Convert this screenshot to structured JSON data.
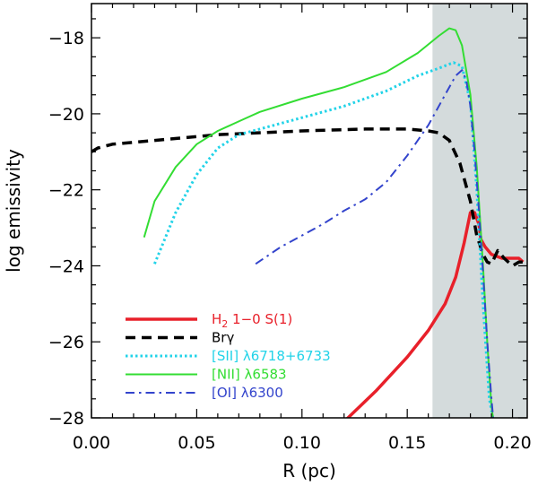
{
  "chart_data": {
    "type": "line",
    "xlabel": "R (pc)",
    "ylabel": "log emissivity",
    "xlim": [
      0.0,
      0.207
    ],
    "ylim": [
      -28,
      -17.1
    ],
    "xticks": [
      0.0,
      0.05,
      0.1,
      0.15,
      0.2
    ],
    "xtick_labels": [
      "0.00",
      "0.05",
      "0.10",
      "0.15",
      "0.20"
    ],
    "yticks": [
      -28,
      -26,
      -24,
      -22,
      -20,
      -18
    ],
    "ytick_labels": [
      "−28",
      "−26",
      "−24",
      "−22",
      "−20",
      "−18"
    ],
    "shaded_region": {
      "x_from": 0.162,
      "x_to": 0.207,
      "color": "#d4dbdc"
    },
    "legend_position": "lower-left",
    "series": [
      {
        "name": "H2 1-0 S(1)",
        "label_main": "H",
        "label_sub": "2",
        "label_rest": " 1−0 S(1)",
        "color": "#e8202a",
        "style": "solid",
        "width": 3.5,
        "x": [
          0.12,
          0.135,
          0.15,
          0.16,
          0.168,
          0.173,
          0.177,
          0.18,
          0.182,
          0.184,
          0.185,
          0.187,
          0.19,
          0.195,
          0.2,
          0.203,
          0.205
        ],
        "y": [
          -28.1,
          -27.3,
          -26.4,
          -25.7,
          -25.0,
          -24.3,
          -23.4,
          -22.6,
          -22.6,
          -22.9,
          -23.3,
          -23.5,
          -23.7,
          -23.8,
          -23.8,
          -23.8,
          -23.9
        ]
      },
      {
        "name": "Brγ",
        "label_main": "Brγ",
        "color": "#000000",
        "style": "dashed",
        "width": 3.5,
        "x": [
          0.0,
          0.003,
          0.01,
          0.03,
          0.06,
          0.1,
          0.13,
          0.15,
          0.16,
          0.165,
          0.17,
          0.175,
          0.18,
          0.183,
          0.186,
          0.188,
          0.19,
          0.193,
          0.196,
          0.2,
          0.203,
          0.205
        ],
        "y": [
          -21.0,
          -20.9,
          -20.8,
          -20.7,
          -20.55,
          -20.45,
          -20.4,
          -20.4,
          -20.45,
          -20.5,
          -20.7,
          -21.3,
          -22.3,
          -23.2,
          -23.7,
          -23.9,
          -23.95,
          -23.6,
          -23.8,
          -24.0,
          -23.9,
          -23.9
        ]
      },
      {
        "name": "[SII] λ6718+6733",
        "label_main": "[SII] λ6718+6733",
        "color": "#22d3e8",
        "style": "dotted",
        "width": 3,
        "x": [
          0.03,
          0.04,
          0.05,
          0.06,
          0.07,
          0.08,
          0.1,
          0.12,
          0.14,
          0.155,
          0.165,
          0.172,
          0.176,
          0.18,
          0.183,
          0.186,
          0.189,
          0.191
        ],
        "y": [
          -23.95,
          -22.6,
          -21.6,
          -20.9,
          -20.55,
          -20.4,
          -20.1,
          -19.8,
          -19.4,
          -19.0,
          -18.8,
          -18.65,
          -18.75,
          -19.7,
          -22.0,
          -25.0,
          -27.5,
          -28.1
        ]
      },
      {
        "name": "[NII] λ6583",
        "label_main": "[NII] λ6583",
        "color": "#33dd33",
        "style": "solid",
        "width": 2,
        "x": [
          0.025,
          0.03,
          0.04,
          0.05,
          0.06,
          0.07,
          0.08,
          0.1,
          0.12,
          0.14,
          0.155,
          0.165,
          0.17,
          0.173,
          0.176,
          0.18,
          0.183,
          0.186,
          0.188,
          0.19,
          0.191
        ],
        "y": [
          -23.25,
          -22.3,
          -21.4,
          -20.8,
          -20.45,
          -20.2,
          -19.95,
          -19.6,
          -19.3,
          -18.9,
          -18.4,
          -17.95,
          -17.75,
          -17.8,
          -18.2,
          -19.5,
          -21.4,
          -24.0,
          -26.0,
          -27.7,
          -28.1
        ]
      },
      {
        "name": "[OI] λ6300",
        "label_main": "[OI] λ6300",
        "color": "#3344cc",
        "style": "dashdot",
        "width": 2,
        "x": [
          0.078,
          0.09,
          0.1,
          0.11,
          0.12,
          0.13,
          0.14,
          0.15,
          0.16,
          0.168,
          0.173,
          0.176,
          0.178,
          0.18,
          0.182,
          0.184,
          0.186,
          0.188,
          0.19,
          0.191
        ],
        "y": [
          -23.95,
          -23.5,
          -23.2,
          -22.9,
          -22.55,
          -22.25,
          -21.8,
          -21.1,
          -20.3,
          -19.5,
          -19.0,
          -18.85,
          -19.1,
          -19.8,
          -21.0,
          -22.5,
          -24.2,
          -26.0,
          -27.5,
          -28.1
        ]
      }
    ]
  }
}
